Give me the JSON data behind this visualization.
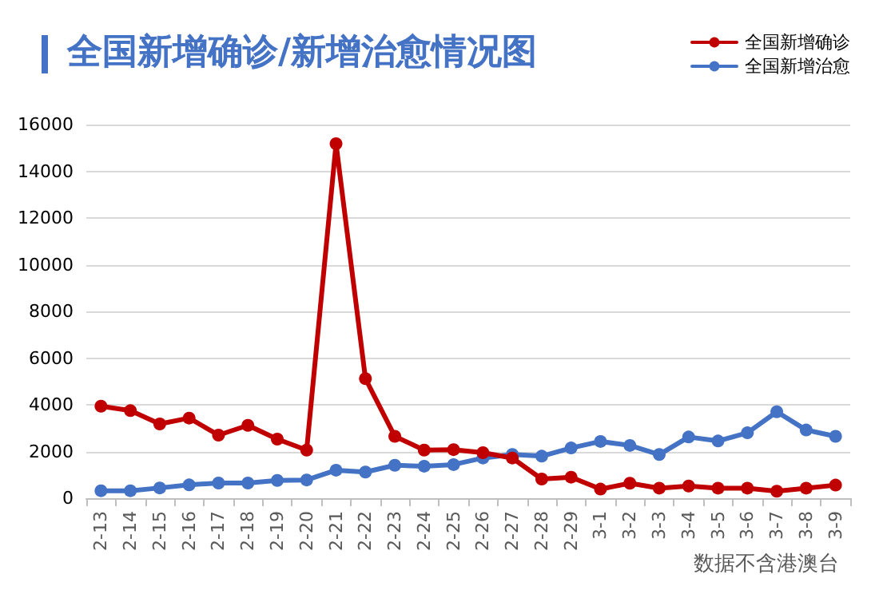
{
  "chart_data": {
    "type": "line",
    "title": "全国新增确诊/新增治愈情况图",
    "categories": [
      "2-13",
      "2-14",
      "2-15",
      "2-16",
      "2-17",
      "2-18",
      "2-19",
      "2-20",
      "2-21",
      "2-22",
      "2-23",
      "2-24",
      "2-25",
      "2-26",
      "2-27",
      "2-28",
      "2-29",
      "3-1",
      "3-2",
      "3-3",
      "3-4",
      "3-5",
      "3-6",
      "3-7",
      "3-8",
      "3-9"
    ],
    "series": [
      {
        "name": "全国新增确诊",
        "color": "#c00000",
        "values": [
          3940,
          3750,
          3180,
          3430,
          2700,
          3120,
          2530,
          2060,
          15180,
          5120,
          2650,
          2060,
          2080,
          1950,
          1720,
          820,
          900,
          390,
          640,
          430,
          520,
          430,
          430,
          300,
          430,
          560
        ]
      },
      {
        "name": "全国新增治愈",
        "color": "#4472c4",
        "values": [
          320,
          320,
          440,
          570,
          650,
          650,
          760,
          780,
          1200,
          1120,
          1410,
          1370,
          1440,
          1720,
          1870,
          1800,
          2150,
          2430,
          2260,
          1870,
          2620,
          2450,
          2800,
          3700,
          2920,
          2650
        ]
      }
    ],
    "ylim": [
      0,
      16000
    ],
    "yticks": [
      0,
      2000,
      4000,
      6000,
      8000,
      10000,
      12000,
      14000,
      16000
    ],
    "grid": "y",
    "legend": "top right",
    "marker": "circle",
    "line_style": "solid",
    "annotations": [
      "数据不含港澳台"
    ]
  }
}
